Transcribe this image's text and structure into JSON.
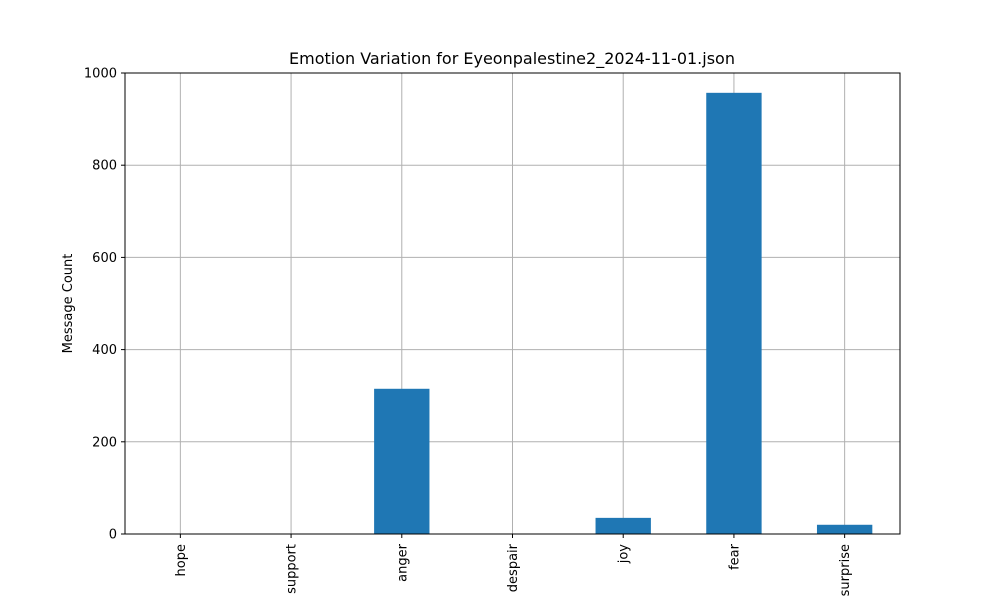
{
  "chart_data": {
    "type": "bar",
    "title": "Emotion Variation for Eyeonpalestine2_2024-11-01.json",
    "xlabel": "",
    "ylabel": "Message Count",
    "categories": [
      "hope",
      "support",
      "anger",
      "despair",
      "joy",
      "fear",
      "surprise"
    ],
    "values": [
      0,
      0,
      315,
      0,
      35,
      957,
      20
    ],
    "ylim": [
      0,
      1000
    ],
    "yticks": [
      0,
      200,
      400,
      600,
      800,
      1000
    ],
    "grid": true,
    "legend": "none",
    "bar_color": "#1f77b4"
  }
}
